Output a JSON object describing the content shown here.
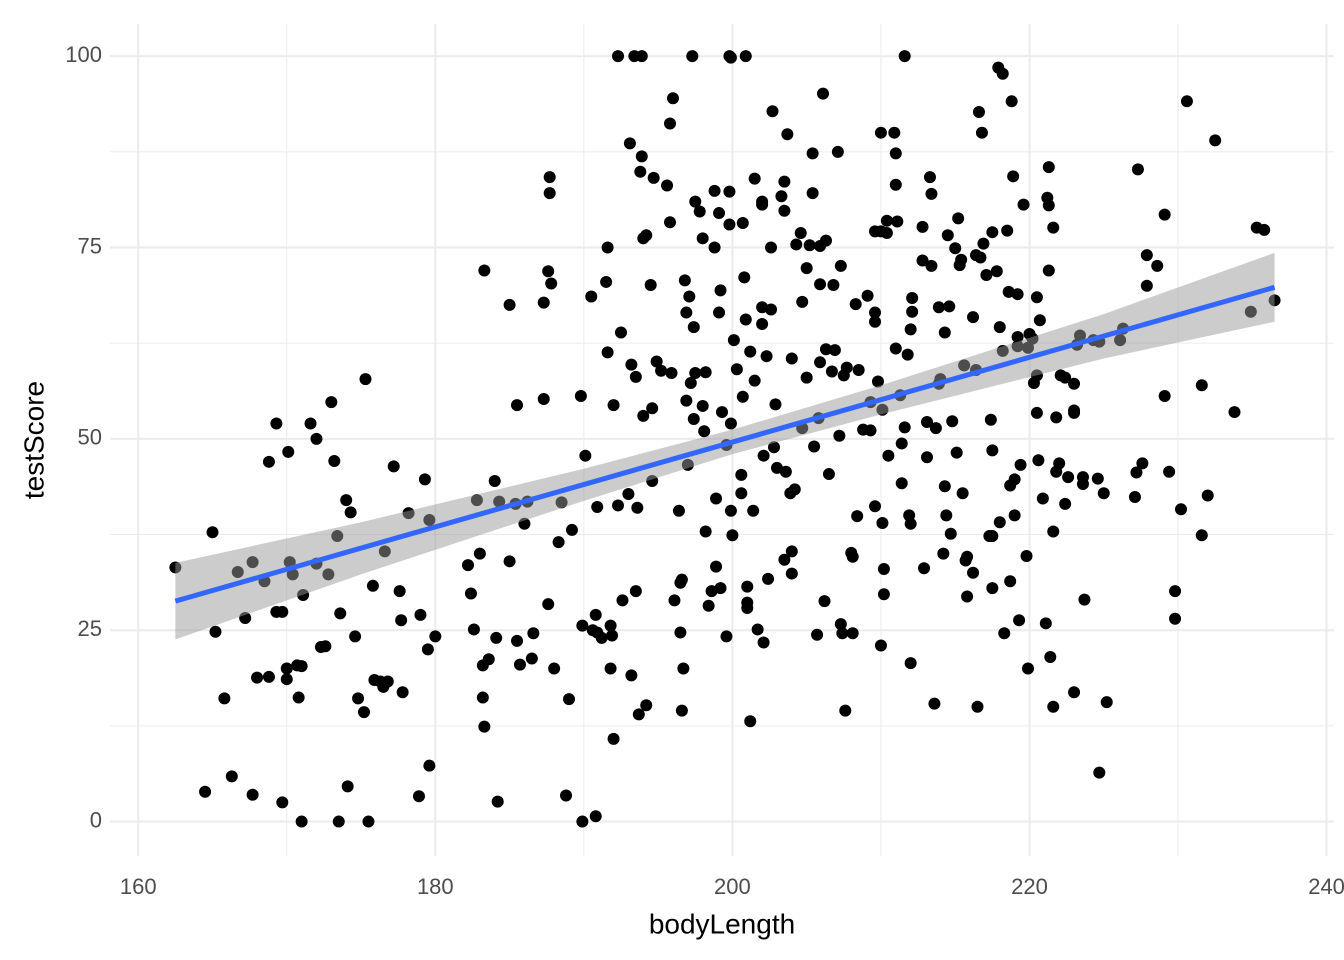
{
  "chart_data": {
    "type": "scatter",
    "x_label": "bodyLength",
    "y_label": "testScore",
    "xlim": [
      158.1,
      240.5
    ],
    "ylim": [
      -4.5,
      104.2
    ],
    "xticks": [
      160,
      180,
      200,
      220,
      240
    ],
    "yticks": [
      0,
      25,
      50,
      75,
      100
    ],
    "grid": true,
    "series": [
      {
        "color": "#000000",
        "x": [
          162.5,
          164.5,
          165,
          165.2,
          165.8,
          166.3,
          166.7,
          167.2,
          167.7,
          167.7,
          168,
          168.5,
          168.8,
          168.8,
          169.3,
          169.3,
          169.7,
          169.7,
          170,
          170,
          170.1,
          170.2,
          170.4,
          170.7,
          170.8,
          171,
          171.1,
          171,
          171.6,
          172,
          172,
          172.3,
          172.6,
          172.8,
          173,
          173.2,
          173.4,
          173.5,
          173.6,
          174,
          174.1,
          174.3,
          174.6,
          174.8,
          175.2,
          175.3,
          175.5,
          175.8,
          175.9,
          176.3,
          176.5,
          176.6,
          176.8,
          177.2,
          177.6,
          177.7,
          177.8,
          178.2,
          178.9,
          179,
          179.3,
          179.5,
          179.6,
          179.6,
          180,
          182.2,
          182.4,
          182.6,
          182.8,
          183,
          183.2,
          183.2,
          183.3,
          183.3,
          183.6,
          184,
          184.1,
          184.2,
          184.3,
          185,
          185,
          185.4,
          185.5,
          185.5,
          185.7,
          186,
          186.2,
          186.5,
          186.6,
          187.3,
          187.3,
          187.6,
          187.7,
          187.7,
          187.8,
          187.6,
          188,
          188.3,
          188.5,
          188.8,
          189,
          189.2,
          189.8,
          189.9,
          189.9,
          190.1,
          190.5,
          190.6,
          190.9,
          190.9,
          190.8,
          190.8,
          191.2,
          191.5,
          191.6,
          191.6,
          191.8,
          191.8,
          191.9,
          192,
          192,
          192.3,
          192.3,
          192.5,
          192.6,
          193,
          193.1,
          193.2,
          193.2,
          193.4,
          193.5,
          193.5,
          193.6,
          193.7,
          193.8,
          193.9,
          193.9,
          194,
          194,
          194.2,
          194.2,
          194.5,
          194.6,
          194.6,
          194.7,
          194.9,
          195.2,
          195.6,
          195.8,
          195.8,
          195.9,
          196,
          196.1,
          196.4,
          196.5,
          196.6,
          196.6,
          196.5,
          196.7,
          196.8,
          196.9,
          196.9,
          197,
          197.2,
          197.1,
          197.3,
          197.4,
          197.5,
          197.4,
          197.5,
          197.8,
          198,
          198.1,
          198,
          198.2,
          198.2,
          198.4,
          198.6,
          198.8,
          198.8,
          198.9,
          198.9,
          199.1,
          199.1,
          199.2,
          199.3,
          199.2,
          199.6,
          199.6,
          199.8,
          199.8,
          199.9,
          199.9,
          199.9,
          199.8,
          200.1,
          200,
          200.3,
          200.6,
          200.6,
          200.7,
          200.7,
          200.8,
          200.9,
          200.9,
          201,
          201,
          201,
          201.2,
          201.2,
          201.4,
          201.5,
          201.5,
          201.7,
          202,
          202,
          202,
          202,
          202.1,
          202.1,
          202.3,
          202.4,
          202.6,
          202.6,
          202.7,
          202.8,
          202.9,
          203,
          203.3,
          203.5,
          203.5,
          203.5,
          203.6,
          203.7,
          203.9,
          204,
          204,
          204,
          204.2,
          204.3,
          204.6,
          204.7,
          204.7,
          205,
          205,
          205.2,
          205.4,
          205.4,
          205.5,
          205.9,
          205.8,
          205.9,
          205.9,
          205.7,
          206.1,
          206.2,
          206.3,
          206.3,
          206.5,
          206.7,
          206.8,
          206.9,
          207.1,
          207.3,
          207.2,
          207.4,
          207.3,
          207.5,
          207.6,
          207.7,
          208,
          208.1,
          208.1,
          208.3,
          208.4,
          208.5,
          208.8,
          209.1,
          209.3,
          209.3,
          209.6,
          209.6,
          209.6,
          209.8,
          209.6,
          210,
          210,
          210,
          210.1,
          210.1,
          210.2,
          210.2,
          210.4,
          210.4,
          210.5,
          210.9,
          211,
          211,
          211,
          211.1,
          211.3,
          211.4,
          211.4,
          211.6,
          211.6,
          211.8,
          212,
          211.9,
          212,
          212.1,
          212,
          212.1,
          212.8,
          212.9,
          212.8,
          213.1,
          213.1,
          213.3,
          213.4,
          213.4,
          213.6,
          213.7,
          213.9,
          213.9,
          214,
          214.3,
          214.2,
          214.4,
          214.3,
          214.5,
          214.6,
          214.7,
          214.8,
          215.1,
          215,
          215.2,
          215.3,
          215.5,
          215.4,
          215.6,
          215.7,
          215.8,
          215.8,
          216.2,
          216.2,
          216.6,
          216.5,
          216.4,
          216.4,
          216.7,
          216.9,
          216.8,
          217.1,
          217.3,
          217.4,
          217.5,
          217.5,
          217.5,
          217.5,
          217.8,
          217.9,
          218,
          218,
          218.2,
          218.2,
          218.5,
          218.6,
          218.3,
          218.7,
          218.7,
          218.8,
          218.9,
          219,
          219,
          219.2,
          219.2,
          219.2,
          219.3,
          219.4,
          219.6,
          219.8,
          219.9,
          219.9,
          220,
          220.2,
          220.3,
          220.5,
          220.5,
          220.5,
          220.6,
          220.7,
          220.9,
          221.1,
          221.3,
          221.4,
          221.6,
          221.3,
          221.2,
          221.3,
          221.6,
          221.6,
          221.8,
          221.8,
          222,
          222.1,
          222.4,
          222.4,
          222.6,
          223,
          223,
          223,
          223,
          223.2,
          223.4,
          223.6,
          223.6,
          223.7,
          224.3,
          224.7,
          224.6,
          224.7,
          225,
          225.2,
          226.1,
          226.3,
          227.1,
          227.2,
          227.3,
          227.6,
          227.9,
          227.9,
          228.6,
          229.1,
          229.1,
          229.4,
          229.8,
          229.8,
          230.2,
          230.6,
          231.6,
          231.6,
          232,
          232.5,
          233.8,
          234.9,
          235.3,
          235.8,
          236.5
        ],
        "values": [
          33.2,
          3.9,
          37.8,
          24.8,
          16.1,
          5.9,
          32.6,
          26.6,
          33.9,
          3.5,
          18.8,
          31.4,
          18.9,
          47,
          52,
          27.4,
          27.4,
          2.5,
          18.6,
          20,
          48.3,
          33.9,
          32.3,
          20.4,
          16.2,
          20.3,
          29.6,
          0,
          52,
          33.7,
          50,
          22.8,
          22.9,
          32.3,
          54.8,
          47.1,
          37.3,
          0,
          27.2,
          42,
          4.6,
          40.4,
          24.2,
          16.1,
          14.3,
          57.8,
          0,
          30.8,
          18.5,
          18.3,
          17.6,
          35.3,
          18.3,
          46.4,
          30.1,
          26.3,
          16.9,
          40.3,
          3.3,
          27,
          44.7,
          22.5,
          7.3,
          39.4,
          24.2,
          33.5,
          29.8,
          25.1,
          42,
          35,
          16.2,
          20.4,
          72,
          12.4,
          21.2,
          44.5,
          24,
          2.6,
          41.8,
          34,
          67.5,
          41.5,
          54.4,
          23.6,
          20.5,
          38.9,
          41.8,
          21.3,
          24.6,
          67.8,
          55.2,
          71.9,
          84.2,
          82.1,
          70.3,
          28.4,
          20,
          36.5,
          41.7,
          3.4,
          16,
          38.1,
          55.6,
          25.6,
          0,
          47.8,
          68.6,
          25,
          24.7,
          41.1,
          0.7,
          27,
          24,
          70.5,
          75,
          61.3,
          20,
          25.6,
          24.3,
          54.4,
          10.8,
          41.3,
          100,
          63.9,
          28.9,
          42.8,
          88.6,
          19.1,
          59.7,
          100,
          30.1,
          58.1,
          41,
          14,
          84.9,
          86.9,
          100,
          76.2,
          53,
          76.6,
          15.2,
          70.1,
          44.5,
          54,
          84.1,
          60.1,
          58.9,
          83.1,
          78.3,
          91.2,
          58.6,
          94.5,
          28.9,
          40.6,
          31.2,
          31.6,
          14.5,
          24.7,
          20,
          70.7,
          55,
          66.5,
          46.6,
          57.3,
          68.6,
          100,
          64.6,
          58.6,
          52.6,
          81,
          79.7,
          76.2,
          51,
          54.3,
          58.7,
          37.9,
          28.2,
          30.1,
          82.4,
          75,
          42.2,
          33.3,
          79.5,
          66.5,
          69.4,
          53.5,
          30.5,
          49.2,
          24.2,
          78,
          100,
          40.6,
          99.8,
          52,
          82.3,
          62.9,
          37.4,
          59.1,
          45.3,
          42.9,
          55.5,
          78.2,
          71.1,
          65.6,
          100,
          30.7,
          28.6,
          27.9,
          13.1,
          61.4,
          40.6,
          84,
          57.6,
          25.1,
          81,
          80.6,
          67.2,
          65,
          47.8,
          23.4,
          60.8,
          31.7,
          75,
          66.9,
          92.8,
          48.9,
          54.5,
          46.2,
          81.7,
          83.6,
          79.8,
          34.2,
          45.7,
          89.8,
          42.9,
          60.5,
          35.3,
          32.4,
          43.4,
          75.4,
          76.9,
          51.4,
          67.9,
          58,
          72.3,
          75.3,
          87.3,
          82.1,
          49,
          75.2,
          52.7,
          70.2,
          60,
          24.4,
          95.1,
          28.8,
          61.7,
          75.9,
          45.4,
          58.8,
          70.1,
          61.6,
          87.5,
          72.6,
          50.4,
          24.6,
          25.8,
          58.3,
          14.5,
          59.3,
          35.1,
          34.6,
          24.6,
          67.6,
          39.9,
          59,
          51.2,
          68.7,
          54.8,
          51.1,
          41.2,
          66.5,
          65.3,
          57.5,
          77.1,
          77.1,
          90,
          23,
          39,
          53.8,
          29.7,
          33,
          76.9,
          78.5,
          47.8,
          90,
          87.3,
          83.2,
          61.8,
          78.4,
          55.7,
          44.2,
          49.4,
          100,
          51.5,
          61,
          20.7,
          40,
          38.9,
          68.4,
          64.3,
          66.6,
          73.3,
          33.1,
          77.7,
          47.6,
          52.2,
          84.2,
          72.6,
          82,
          15.4,
          51.4,
          57.2,
          67.2,
          57.8,
          43.8,
          35,
          40,
          63.9,
          76.6,
          67.3,
          37.6,
          52.3,
          48.2,
          74.9,
          78.8,
          72.7,
          42.9,
          73.4,
          59.6,
          34.1,
          29.4,
          34.6,
          65.9,
          32.5,
          92.7,
          15,
          59,
          74,
          73.7,
          75.5,
          90,
          71.4,
          37.3,
          52.5,
          30.5,
          48.5,
          37.3,
          77,
          71.9,
          98.5,
          39.1,
          64.6,
          61.5,
          97.7,
          77.2,
          69.2,
          24.6,
          43.9,
          31.4,
          94.1,
          84.3,
          44.7,
          40,
          63.3,
          62.1,
          68.9,
          26.3,
          46.6,
          80.6,
          34.7,
          20,
          61.9,
          63.7,
          63.1,
          57.3,
          68.5,
          58.3,
          53.4,
          47.2,
          65.5,
          42.2,
          25.9,
          80.5,
          21.5,
          77.6,
          85.5,
          81.5,
          72,
          37.9,
          15,
          52.8,
          45.7,
          46.8,
          58.3,
          41.5,
          58,
          45,
          53.7,
          53.4,
          57.2,
          16.9,
          62.3,
          63.5,
          44.1,
          45,
          29,
          62.9,
          6.4,
          44.8,
          62.7,
          42.9,
          15.6,
          62.9,
          64.4,
          42.4,
          45.6,
          85.2,
          46.8,
          74,
          70,
          72.6,
          79.3,
          55.6,
          45.7,
          26.5,
          30.1,
          40.8,
          94.1,
          57,
          37.4,
          42.6,
          89,
          53.5,
          66.6,
          77.6,
          77.3,
          68.1
        ]
      }
    ],
    "band": {
      "color": "#999999",
      "x": [
        162.5,
        175,
        190,
        200,
        210,
        225,
        236.5
      ],
      "lower": [
        23.8,
        32.3,
        41.9,
        48.0,
        53.2,
        60.5,
        65.3
      ],
      "upper": [
        33.8,
        39.1,
        46.1,
        51.2,
        57.0,
        66.3,
        74.3
      ]
    },
    "fit": {
      "color": "#3366ff",
      "x": [
        162.5,
        236.5
      ],
      "values": [
        28.8,
        69.8
      ]
    }
  }
}
